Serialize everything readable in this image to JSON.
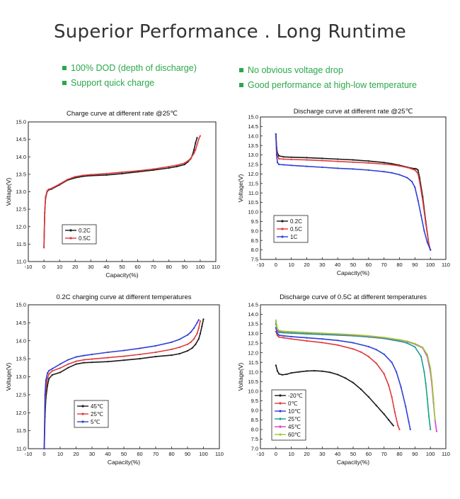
{
  "header": {
    "title": "Superior Performance . Long Runtime"
  },
  "features": [
    "100% DOD (depth of discharge)",
    "Support quick charge",
    "No obvious voltage drop",
    "Good performance at high-low temperature"
  ],
  "colors": {
    "feature_green": "#2aa84a"
  },
  "chart_data": [
    {
      "type": "line",
      "title": "Charge curve at different rate @25℃",
      "xlabel": "Capacity(%)",
      "ylabel": "Voltage(V)",
      "xlim": [
        -10,
        110
      ],
      "ylim": [
        11.0,
        15.0
      ],
      "xticks": [
        "-10",
        "0",
        "10",
        "20",
        "30",
        "40",
        "50",
        "60",
        "70",
        "80",
        "90",
        "100",
        "110"
      ],
      "yticks": [
        "11.0",
        "11.5",
        "12.0",
        "12.5",
        "13.0",
        "13.5",
        "14.0",
        "14.5",
        "15.0"
      ],
      "legend": "bottom-left",
      "series": [
        {
          "name": "0.2C",
          "color": "#1a1a1a",
          "x": [
            0,
            0.5,
            1,
            2,
            3,
            5,
            10,
            15,
            20,
            25,
            30,
            40,
            50,
            60,
            70,
            80,
            85,
            90,
            92,
            94,
            95,
            96,
            97,
            98
          ],
          "y": [
            11.4,
            12.4,
            12.8,
            13.0,
            13.05,
            13.08,
            13.2,
            13.33,
            13.4,
            13.44,
            13.46,
            13.48,
            13.52,
            13.57,
            13.62,
            13.68,
            13.72,
            13.78,
            13.85,
            13.95,
            14.05,
            14.2,
            14.4,
            14.55
          ]
        },
        {
          "name": "0.5C",
          "color": "#e0393b",
          "x": [
            0,
            0.5,
            1,
            2,
            3,
            5,
            10,
            15,
            20,
            25,
            30,
            40,
            50,
            60,
            70,
            80,
            85,
            90,
            92,
            94,
            96,
            97,
            98,
            99,
            100
          ],
          "y": [
            11.4,
            12.4,
            12.85,
            13.02,
            13.07,
            13.1,
            13.22,
            13.35,
            13.43,
            13.47,
            13.49,
            13.52,
            13.56,
            13.6,
            13.65,
            13.72,
            13.76,
            13.82,
            13.88,
            13.96,
            14.1,
            14.2,
            14.35,
            14.5,
            14.6
          ]
        }
      ]
    },
    {
      "type": "line",
      "title": "Discharge curve at different rate @25℃",
      "xlabel": "Capacity(%)",
      "ylabel": "Voltage(V)",
      "xlim": [
        -10,
        110
      ],
      "ylim": [
        7.5,
        15.0
      ],
      "xticks": [
        "-10",
        "0",
        "10",
        "20",
        "30",
        "40",
        "50",
        "60",
        "70",
        "80",
        "90",
        "100",
        "110"
      ],
      "yticks": [
        "7.5",
        "8.0",
        "8.5",
        "9.0",
        "9.5",
        "10.0",
        "10.5",
        "11.0",
        "11.5",
        "12.0",
        "12.5",
        "13.0",
        "13.5",
        "14.0",
        "14.5",
        "15.0"
      ],
      "legend": "bottom-left",
      "series": [
        {
          "name": "0.2C",
          "color": "#1a1a1a",
          "x": [
            0,
            0.5,
            1,
            2,
            5,
            10,
            20,
            30,
            40,
            50,
            60,
            70,
            75,
            80,
            85,
            88,
            90,
            91,
            92,
            93,
            95,
            97,
            99,
            100
          ],
          "y": [
            14.1,
            13.4,
            13.1,
            12.95,
            12.9,
            12.88,
            12.86,
            12.82,
            12.78,
            12.74,
            12.68,
            12.6,
            12.54,
            12.46,
            12.36,
            12.3,
            12.28,
            12.26,
            12.2,
            11.8,
            10.8,
            9.5,
            8.3,
            8.0
          ]
        },
        {
          "name": "0.5C",
          "color": "#e0393b",
          "x": [
            0,
            0.5,
            1,
            2,
            5,
            10,
            20,
            30,
            40,
            50,
            60,
            70,
            75,
            80,
            85,
            88,
            90,
            91,
            92,
            93,
            95,
            97,
            99,
            100
          ],
          "y": [
            14.1,
            13.3,
            12.95,
            12.8,
            12.78,
            12.76,
            12.74,
            12.7,
            12.66,
            12.62,
            12.58,
            12.52,
            12.48,
            12.42,
            12.34,
            12.26,
            12.2,
            12.12,
            12.0,
            11.6,
            10.6,
            9.4,
            8.3,
            8.0
          ]
        },
        {
          "name": "1C",
          "color": "#2d3fd8",
          "x": [
            0,
            0.5,
            1,
            2,
            5,
            10,
            20,
            30,
            40,
            50,
            60,
            70,
            75,
            80,
            85,
            88,
            90,
            92,
            94,
            96,
            98,
            100
          ],
          "y": [
            14.1,
            13.0,
            12.6,
            12.5,
            12.48,
            12.45,
            12.4,
            12.35,
            12.3,
            12.26,
            12.2,
            12.12,
            12.06,
            11.96,
            11.8,
            11.6,
            11.3,
            10.6,
            9.8,
            9.0,
            8.4,
            8.0
          ]
        }
      ]
    },
    {
      "type": "line",
      "title": "0.2C charging curve at different temperatures",
      "xlabel": "Capacity(%)",
      "ylabel": "Voltage(V)",
      "xlim": [
        -10,
        110
      ],
      "ylim": [
        11.0,
        15.0
      ],
      "xticks": [
        "-10",
        "0",
        "10",
        "20",
        "30",
        "40",
        "50",
        "60",
        "70",
        "80",
        "90",
        "100",
        "110"
      ],
      "yticks": [
        "11.0",
        "11.5",
        "12.0",
        "12.5",
        "13.0",
        "13.5",
        "14.0",
        "14.5",
        "15.0"
      ],
      "legend": "bottom-left",
      "series": [
        {
          "name": "45℃",
          "color": "#1a1a1a",
          "x": [
            0,
            0.5,
            1,
            2,
            3,
            5,
            10,
            15,
            20,
            25,
            30,
            40,
            50,
            60,
            70,
            80,
            85,
            90,
            93,
            95,
            97,
            98,
            99,
            100
          ],
          "y": [
            11.0,
            11.9,
            12.4,
            12.75,
            12.95,
            13.05,
            13.12,
            13.25,
            13.35,
            13.39,
            13.4,
            13.42,
            13.46,
            13.5,
            13.56,
            13.6,
            13.64,
            13.72,
            13.8,
            13.9,
            14.05,
            14.2,
            14.4,
            14.6
          ]
        },
        {
          "name": "25℃",
          "color": "#e0393b",
          "x": [
            0,
            0.5,
            1,
            2,
            3,
            5,
            10,
            15,
            20,
            25,
            30,
            40,
            50,
            60,
            70,
            80,
            85,
            90,
            92,
            94,
            96,
            97,
            98
          ],
          "y": [
            11.0,
            12.2,
            12.65,
            12.95,
            13.08,
            13.16,
            13.24,
            13.35,
            13.43,
            13.47,
            13.49,
            13.53,
            13.57,
            13.62,
            13.68,
            13.76,
            13.82,
            13.9,
            13.96,
            14.05,
            14.2,
            14.35,
            14.55
          ]
        },
        {
          "name": "5℃",
          "color": "#2d3fd8",
          "x": [
            0,
            0.5,
            1,
            2,
            3,
            5,
            10,
            15,
            20,
            25,
            30,
            40,
            50,
            60,
            70,
            80,
            85,
            90,
            92,
            94,
            96,
            97
          ],
          "y": [
            11.0,
            12.5,
            12.9,
            13.1,
            13.17,
            13.22,
            13.35,
            13.47,
            13.55,
            13.59,
            13.62,
            13.68,
            13.73,
            13.79,
            13.86,
            13.96,
            14.04,
            14.16,
            14.24,
            14.35,
            14.5,
            14.58
          ]
        }
      ]
    },
    {
      "type": "line",
      "title": "Discharge curve of 0.5C at different temperatures",
      "xlabel": "Capacity(%)",
      "ylabel": "Voltage(V)",
      "xlim": [
        -10,
        110
      ],
      "ylim": [
        7.0,
        14.5
      ],
      "xticks": [
        "-10",
        "0",
        "10",
        "20",
        "30",
        "40",
        "50",
        "60",
        "70",
        "80",
        "90",
        "100",
        "110"
      ],
      "yticks": [
        "7.0",
        "7.5",
        "8.0",
        "8.5",
        "9.0",
        "9.5",
        "10.0",
        "10.5",
        "11.0",
        "11.5",
        "12.0",
        "12.5",
        "13.0",
        "13.5",
        "14.0",
        "14.5"
      ],
      "legend": "bottom-left",
      "series": [
        {
          "name": "-20℃",
          "color": "#1a1a1a",
          "x": [
            0,
            1,
            2,
            4,
            7,
            10,
            15,
            20,
            25,
            30,
            35,
            40,
            45,
            50,
            55,
            60,
            65,
            70,
            73,
            75,
            76
          ],
          "y": [
            11.35,
            11.05,
            10.9,
            10.85,
            10.88,
            10.95,
            11.0,
            11.05,
            11.06,
            11.04,
            10.98,
            10.86,
            10.68,
            10.44,
            10.1,
            9.7,
            9.25,
            8.8,
            8.5,
            8.3,
            8.2
          ]
        },
        {
          "name": "0℃",
          "color": "#e0393b",
          "x": [
            0,
            1,
            2,
            5,
            10,
            20,
            30,
            40,
            50,
            55,
            60,
            65,
            70,
            73,
            75,
            77,
            79,
            80
          ],
          "y": [
            13.1,
            12.9,
            12.82,
            12.78,
            12.72,
            12.62,
            12.53,
            12.4,
            12.2,
            12.04,
            11.8,
            11.45,
            10.9,
            10.3,
            9.7,
            8.9,
            8.2,
            8.0
          ]
        },
        {
          "name": "10℃",
          "color": "#2d3fd8",
          "x": [
            0,
            1,
            2,
            5,
            10,
            20,
            30,
            40,
            50,
            60,
            65,
            70,
            75,
            78,
            81,
            84,
            86,
            87
          ],
          "y": [
            13.3,
            13.0,
            12.92,
            12.88,
            12.84,
            12.78,
            12.72,
            12.64,
            12.52,
            12.32,
            12.16,
            11.92,
            11.5,
            11.0,
            10.2,
            9.2,
            8.4,
            8.0
          ]
        },
        {
          "name": "25℃",
          "color": "#17a08a",
          "x": [
            0,
            1,
            2,
            5,
            10,
            20,
            30,
            40,
            50,
            60,
            70,
            80,
            85,
            90,
            94,
            96,
            97,
            98,
            99,
            100
          ],
          "y": [
            13.5,
            13.15,
            13.06,
            13.04,
            13.02,
            12.98,
            12.95,
            12.92,
            12.88,
            12.82,
            12.74,
            12.6,
            12.5,
            12.3,
            11.8,
            11.0,
            10.4,
            9.6,
            8.7,
            8.0
          ]
        },
        {
          "name": "45℃",
          "color": "#d23fd0",
          "x": [
            0,
            1,
            2,
            5,
            10,
            20,
            30,
            40,
            50,
            60,
            70,
            80,
            85,
            90,
            95,
            98,
            100,
            101,
            102,
            103,
            104
          ],
          "y": [
            13.6,
            13.2,
            13.12,
            13.1,
            13.08,
            13.04,
            13.0,
            12.96,
            12.92,
            12.86,
            12.78,
            12.66,
            12.58,
            12.45,
            12.25,
            11.8,
            11.0,
            10.3,
            9.4,
            8.5,
            7.9
          ]
        },
        {
          "name": "60℃",
          "color": "#9acd32",
          "x": [
            0,
            1,
            2,
            5,
            10,
            20,
            30,
            40,
            50,
            60,
            70,
            80,
            85,
            90,
            95,
            98,
            100,
            101,
            102,
            103
          ],
          "y": [
            13.7,
            13.25,
            13.16,
            13.12,
            13.1,
            13.06,
            13.02,
            12.98,
            12.94,
            12.88,
            12.8,
            12.68,
            12.6,
            12.48,
            12.28,
            11.9,
            11.2,
            10.5,
            9.6,
            8.5
          ]
        }
      ]
    }
  ]
}
